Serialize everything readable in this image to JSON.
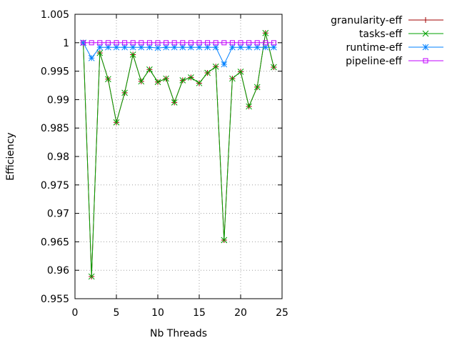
{
  "chart_data": {
    "type": "line",
    "xlabel": "Nb Threads",
    "ylabel": "Efficiency",
    "xlim": [
      0,
      25
    ],
    "ylim": [
      0.955,
      1.005
    ],
    "xticks": [
      "0",
      "5",
      "10",
      "15",
      "20",
      "25"
    ],
    "yticks": [
      "0.955",
      "0.96",
      "0.965",
      "0.97",
      "0.975",
      "0.98",
      "0.985",
      "0.99",
      "0.995",
      "1",
      "1.005"
    ],
    "grid": true,
    "legend_position": "top-right outside",
    "x": [
      1,
      2,
      3,
      4,
      5,
      6,
      7,
      8,
      9,
      10,
      11,
      12,
      13,
      14,
      15,
      16,
      17,
      18,
      19,
      20,
      21,
      22,
      23,
      24
    ],
    "series": [
      {
        "name": "granularity-eff",
        "color": "#a00000",
        "marker": "plus",
        "values": [
          1.0,
          0.9589,
          0.9982,
          0.9936,
          0.986,
          0.9912,
          0.9979,
          0.9932,
          0.9953,
          0.9931,
          0.9937,
          0.9895,
          0.9934,
          0.9939,
          0.9929,
          0.9947,
          0.9958,
          0.9653,
          0.9937,
          0.9949,
          0.9888,
          0.9922,
          1.0017,
          0.9957
        ]
      },
      {
        "name": "tasks-eff",
        "color": "#00a000",
        "marker": "cross",
        "values": [
          1.0,
          0.9589,
          0.9982,
          0.9936,
          0.986,
          0.9912,
          0.9979,
          0.9932,
          0.9953,
          0.9931,
          0.9937,
          0.9895,
          0.9934,
          0.9939,
          0.9929,
          0.9947,
          0.9958,
          0.9653,
          0.9937,
          0.9949,
          0.9888,
          0.9922,
          1.0017,
          0.9957
        ]
      },
      {
        "name": "runtime-eff",
        "color": "#0080ff",
        "marker": "star",
        "values": [
          1.0,
          0.9973,
          0.9992,
          0.9992,
          0.9992,
          0.9992,
          0.9992,
          0.9992,
          0.9992,
          0.9991,
          0.9992,
          0.9992,
          0.9992,
          0.9992,
          0.9992,
          0.9992,
          0.9992,
          0.9962,
          0.9992,
          0.9992,
          0.9992,
          0.9992,
          0.9992,
          0.9992
        ]
      },
      {
        "name": "pipeline-eff",
        "color": "#c000ff",
        "marker": "square",
        "values": [
          1.0,
          1.0,
          1.0,
          1.0,
          1.0,
          1.0,
          1.0,
          1.0,
          1.0,
          1.0,
          1.0,
          1.0,
          1.0,
          1.0,
          1.0,
          1.0,
          1.0,
          1.0,
          1.0,
          1.0,
          1.0,
          1.0,
          1.0,
          1.0
        ]
      }
    ]
  }
}
